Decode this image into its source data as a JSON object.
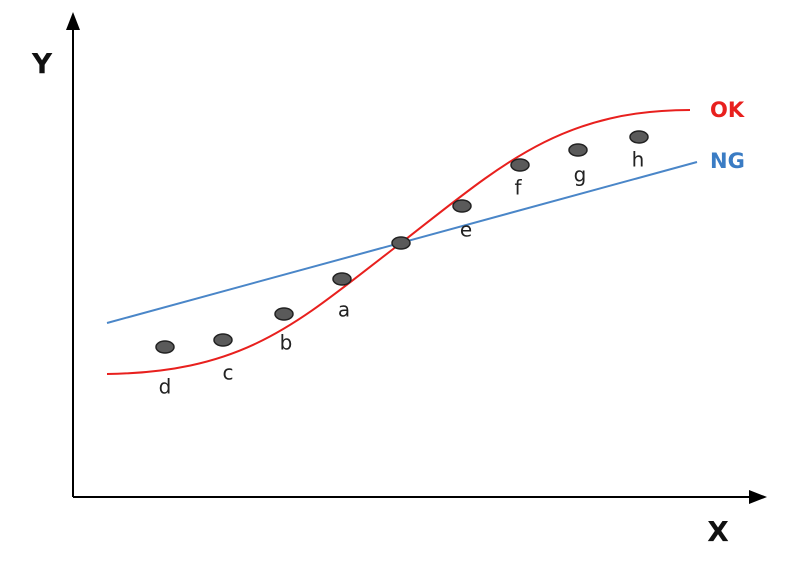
{
  "axes": {
    "y": "Y",
    "x": "X"
  },
  "curves": [
    {
      "label": "OK"
    },
    {
      "label": "NG"
    }
  ],
  "points": [
    {
      "label": "d"
    },
    {
      "label": "c"
    },
    {
      "label": "b"
    },
    {
      "label": "a"
    },
    {
      "label": "e"
    },
    {
      "label": "f"
    },
    {
      "label": "g"
    },
    {
      "label": "h"
    }
  ]
}
